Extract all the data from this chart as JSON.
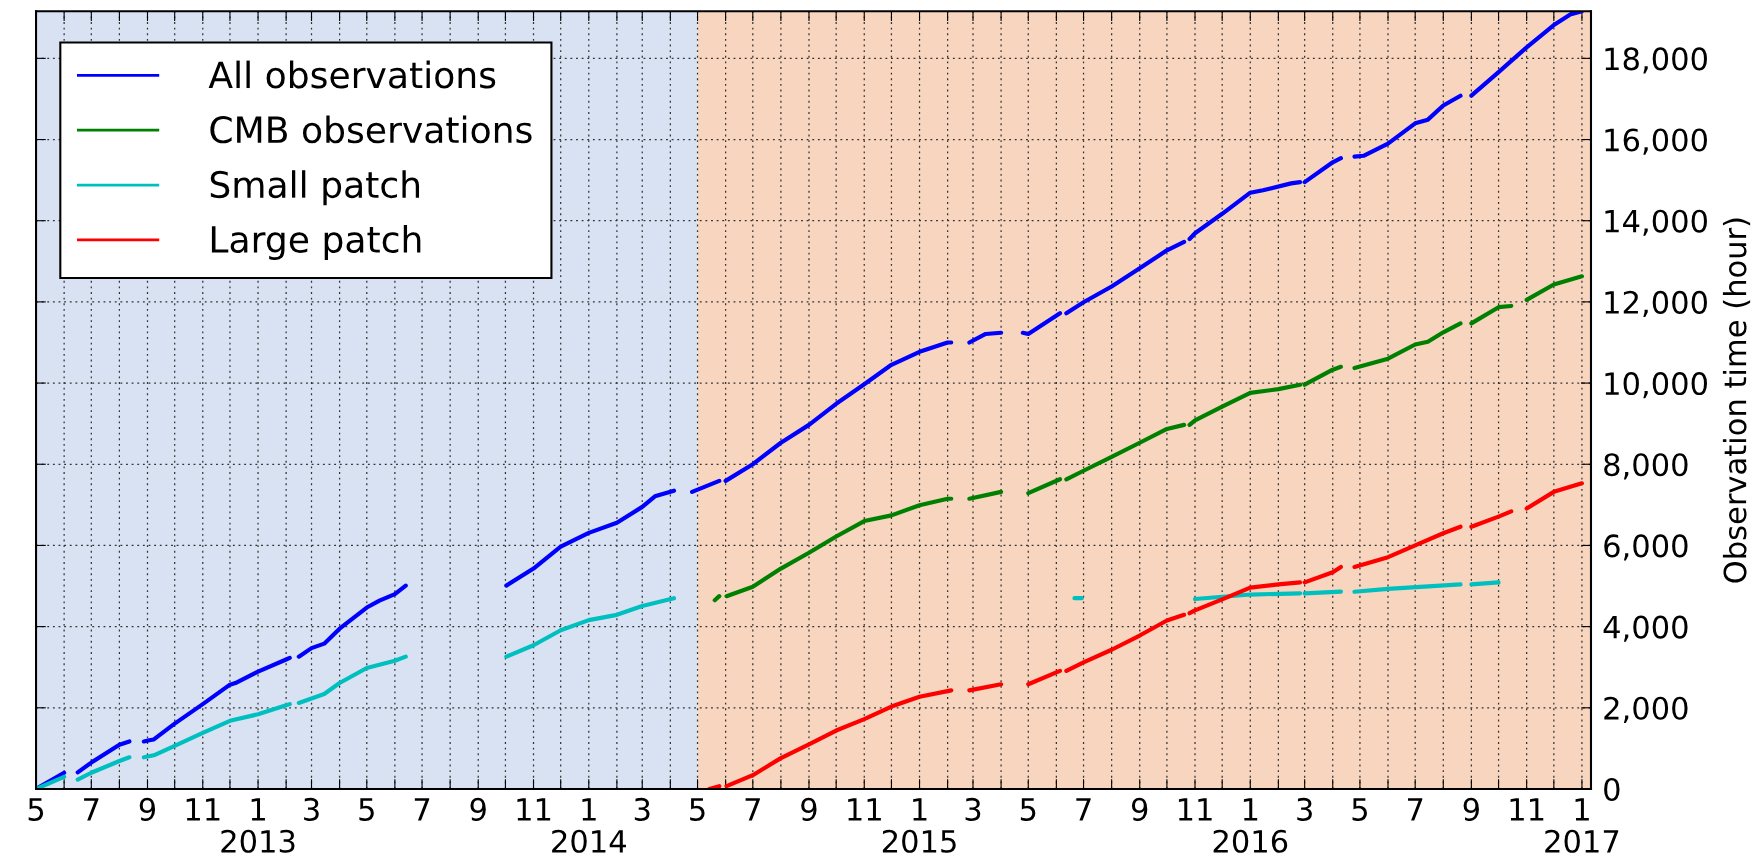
{
  "chart_data": {
    "type": "line",
    "ylabel": "Observation time (hour)",
    "xlim": [
      "2012-05-01",
      "2017-01-11"
    ],
    "ylim": [
      0,
      19160
    ],
    "yticks": [
      {
        "value": 0,
        "label": "0"
      },
      {
        "value": 2000,
        "label": "2,000"
      },
      {
        "value": 4000,
        "label": "4,000"
      },
      {
        "value": 6000,
        "label": "6,000"
      },
      {
        "value": 8000,
        "label": "8,000"
      },
      {
        "value": 10000,
        "label": "10,000"
      },
      {
        "value": 12000,
        "label": "12,000"
      },
      {
        "value": 14000,
        "label": "14,000"
      },
      {
        "value": 16000,
        "label": "16,000"
      },
      {
        "value": 18000,
        "label": "18,000"
      }
    ],
    "xticks": [
      {
        "value": "2012-05-01",
        "label": "5"
      },
      {
        "value": "2012-06-01",
        "label": null
      },
      {
        "value": "2012-07-01",
        "label": "7"
      },
      {
        "value": "2012-08-01",
        "label": null
      },
      {
        "value": "2012-09-01",
        "label": "9"
      },
      {
        "value": "2012-10-01",
        "label": null
      },
      {
        "value": "2012-11-01",
        "label": "11"
      },
      {
        "value": "2012-12-01",
        "label": null
      },
      {
        "value": "2013-01-01",
        "label": "1\n2013"
      },
      {
        "value": "2013-02-01",
        "label": null
      },
      {
        "value": "2013-03-01",
        "label": "3"
      },
      {
        "value": "2013-04-01",
        "label": null
      },
      {
        "value": "2013-05-01",
        "label": "5"
      },
      {
        "value": "2013-06-01",
        "label": null
      },
      {
        "value": "2013-07-01",
        "label": "7"
      },
      {
        "value": "2013-08-01",
        "label": null
      },
      {
        "value": "2013-09-01",
        "label": "9"
      },
      {
        "value": "2013-10-01",
        "label": null
      },
      {
        "value": "2013-11-01",
        "label": "11"
      },
      {
        "value": "2013-12-01",
        "label": null
      },
      {
        "value": "2014-01-01",
        "label": "1\n2014"
      },
      {
        "value": "2014-02-01",
        "label": null
      },
      {
        "value": "2014-03-01",
        "label": "3"
      },
      {
        "value": "2014-04-01",
        "label": null
      },
      {
        "value": "2014-05-01",
        "label": "5"
      },
      {
        "value": "2014-06-01",
        "label": null
      },
      {
        "value": "2014-07-01",
        "label": "7"
      },
      {
        "value": "2014-08-01",
        "label": null
      },
      {
        "value": "2014-09-01",
        "label": "9"
      },
      {
        "value": "2014-10-01",
        "label": null
      },
      {
        "value": "2014-11-01",
        "label": "11"
      },
      {
        "value": "2014-12-01",
        "label": null
      },
      {
        "value": "2015-01-01",
        "label": "1\n2015"
      },
      {
        "value": "2015-02-01",
        "label": null
      },
      {
        "value": "2015-03-01",
        "label": "3"
      },
      {
        "value": "2015-04-01",
        "label": null
      },
      {
        "value": "2015-05-01",
        "label": "5"
      },
      {
        "value": "2015-06-01",
        "label": null
      },
      {
        "value": "2015-07-01",
        "label": "7"
      },
      {
        "value": "2015-08-01",
        "label": null
      },
      {
        "value": "2015-09-01",
        "label": "9"
      },
      {
        "value": "2015-10-01",
        "label": null
      },
      {
        "value": "2015-11-01",
        "label": "11"
      },
      {
        "value": "2015-12-01",
        "label": null
      },
      {
        "value": "2016-01-01",
        "label": "1\n2016"
      },
      {
        "value": "2016-02-01",
        "label": null
      },
      {
        "value": "2016-03-01",
        "label": "3"
      },
      {
        "value": "2016-04-01",
        "label": null
      },
      {
        "value": "2016-05-01",
        "label": "5"
      },
      {
        "value": "2016-06-01",
        "label": null
      },
      {
        "value": "2016-07-01",
        "label": "7"
      },
      {
        "value": "2016-08-01",
        "label": null
      },
      {
        "value": "2016-09-01",
        "label": "9"
      },
      {
        "value": "2016-10-01",
        "label": null
      },
      {
        "value": "2016-11-01",
        "label": "11"
      },
      {
        "value": "2016-12-01",
        "label": null
      },
      {
        "value": "2017-01-01",
        "label": "1\n2017"
      }
    ],
    "grid": true,
    "legend": "top left",
    "marker": "none",
    "line_style": "solid",
    "bands": [
      {
        "axis": "x",
        "from": "2012-05-01",
        "to": "2014-05-01",
        "label": null,
        "color": "#d9e2f3"
      },
      {
        "axis": "x",
        "from": "2014-05-01",
        "to": "2017-01-11",
        "label": null,
        "color": "#f8d5bf"
      }
    ],
    "series": [
      {
        "name": "All observations",
        "color": "#0000ff",
        "x": [
          "2012-05-01",
          "2012-06-01",
          "2012-06-08",
          "2012-06-16",
          "2012-07-01",
          "2012-08-01",
          "2012-08-12",
          "2012-08-20",
          "2012-08-28",
          "2012-09-03",
          "2012-09-08",
          "2012-10-01",
          "2012-11-01",
          "2012-12-01",
          "2012-12-07",
          "2013-01-01",
          "2013-02-01",
          "2013-02-05",
          "2013-02-10",
          "2013-02-15",
          "2013-03-01",
          "2013-03-15",
          "2013-04-01",
          "2013-05-01",
          "2013-05-15",
          "2013-06-01",
          "2013-06-13",
          "2013-08-01",
          "2013-10-02",
          "2013-11-01",
          "2013-12-01",
          "2014-01-01",
          "2014-02-01",
          "2014-03-01",
          "2014-03-15",
          "2014-04-05",
          "2014-04-15",
          "2014-04-25",
          "2014-05-25",
          "2014-05-28",
          "2014-06-01",
          "2014-07-01",
          "2014-08-01",
          "2014-09-01",
          "2014-10-01",
          "2014-11-01",
          "2014-12-01",
          "2015-01-01",
          "2015-02-01",
          "2015-02-05",
          "2015-02-15",
          "2015-02-25",
          "2015-03-15",
          "2015-04-01",
          "2015-04-12",
          "2015-04-25",
          "2015-05-01",
          "2015-06-05",
          "2015-06-08",
          "2015-06-12",
          "2015-07-01",
          "2015-08-01",
          "2015-09-01",
          "2015-10-01",
          "2015-10-20",
          "2015-10-23",
          "2015-10-26",
          "2015-11-01",
          "2015-12-01",
          "2016-01-01",
          "2016-01-15",
          "2016-02-15",
          "2016-02-25",
          "2016-02-27",
          "2016-03-01",
          "2016-04-01",
          "2016-04-10",
          "2016-04-18",
          "2016-04-25",
          "2016-05-05",
          "2016-06-01",
          "2016-07-01",
          "2016-07-15",
          "2016-08-01",
          "2016-08-20",
          "2016-08-25",
          "2016-09-01",
          "2016-10-01",
          "2016-11-01",
          "2016-12-01",
          "2016-12-20",
          "2017-01-01"
        ],
        "values": [
          0,
          400,
          null,
          410,
          650,
          1090,
          1170,
          null,
          1170,
          1200,
          1220,
          1610,
          2090,
          2570,
          2610,
          2890,
          3190,
          3230,
          null,
          3260,
          3470,
          3580,
          3950,
          4470,
          4640,
          4800,
          5010,
          null,
          5010,
          5430,
          5970,
          6310,
          6560,
          6950,
          7210,
          7350,
          null,
          7320,
          7590,
          null,
          7590,
          8000,
          8530,
          8970,
          9490,
          9970,
          10450,
          10770,
          11000,
          11000,
          null,
          11000,
          11210,
          11240,
          null,
          11240,
          11210,
          11720,
          null,
          11720,
          11990,
          12380,
          12830,
          13270,
          13480,
          null,
          13550,
          13690,
          14170,
          14690,
          14750,
          14920,
          14950,
          null,
          14950,
          15440,
          15540,
          null,
          15580,
          15600,
          15900,
          16400,
          16490,
          16840,
          17080,
          null,
          17080,
          17660,
          18270,
          18820,
          19090,
          19160
        ]
      },
      {
        "name": "CMB observations",
        "color": "#008000",
        "x": [
          "2014-05-20",
          "2014-05-25",
          "2014-05-28",
          "2014-06-02",
          "2014-07-01",
          "2014-08-01",
          "2014-09-01",
          "2014-10-01",
          "2014-11-01",
          "2014-12-01",
          "2015-01-01",
          "2015-02-01",
          "2015-02-05",
          "2015-02-15",
          "2015-02-25",
          "2015-04-01",
          "2015-04-15",
          "2015-05-01",
          "2015-06-05",
          "2015-06-08",
          "2015-06-12",
          "2015-07-01",
          "2015-08-01",
          "2015-09-01",
          "2015-10-01",
          "2015-10-20",
          "2015-10-23",
          "2015-10-26",
          "2015-11-01",
          "2015-12-01",
          "2016-01-01",
          "2016-02-01",
          "2016-02-25",
          "2016-02-27",
          "2016-03-01",
          "2016-04-01",
          "2016-04-10",
          "2016-04-18",
          "2016-04-25",
          "2016-06-01",
          "2016-07-01",
          "2016-07-15",
          "2016-08-01",
          "2016-08-20",
          "2016-08-25",
          "2016-09-01",
          "2016-10-01",
          "2016-10-15",
          "2016-10-22",
          "2016-11-01",
          "2016-12-01",
          "2017-01-01"
        ],
        "values": [
          4650,
          4750,
          null,
          4750,
          4980,
          5430,
          5820,
          6220,
          6600,
          6740,
          6990,
          7150,
          7150,
          null,
          7150,
          7320,
          null,
          7290,
          7630,
          null,
          7630,
          7840,
          8180,
          8530,
          8870,
          8970,
          null,
          8970,
          9080,
          9420,
          9760,
          9850,
          9960,
          null,
          9960,
          10330,
          10400,
          null,
          10370,
          10600,
          10950,
          11020,
          11250,
          11470,
          null,
          11470,
          11870,
          11900,
          null,
          12050,
          12430,
          12630
        ]
      },
      {
        "name": "Small patch",
        "color": "#00bfbf",
        "x": [
          "2012-05-01",
          "2012-06-01",
          "2012-06-08",
          "2012-06-16",
          "2012-07-01",
          "2012-08-01",
          "2012-08-12",
          "2012-08-20",
          "2012-08-28",
          "2012-09-08",
          "2012-10-01",
          "2012-11-01",
          "2012-12-01",
          "2013-01-01",
          "2013-02-01",
          "2013-02-05",
          "2013-02-10",
          "2013-02-15",
          "2013-03-15",
          "2013-04-01",
          "2013-05-01",
          "2013-06-01",
          "2013-06-13",
          "2013-08-01",
          "2013-10-02",
          "2013-11-01",
          "2013-12-01",
          "2014-01-01",
          "2014-02-01",
          "2014-03-01",
          "2014-04-05",
          "2014-10-01",
          "2015-06-21",
          "2015-06-29",
          "2015-09-01",
          "2015-11-01",
          "2016-01-01",
          "2016-02-25",
          "2016-02-27",
          "2016-03-01",
          "2016-04-10",
          "2016-04-18",
          "2016-04-25",
          "2016-06-01",
          "2016-08-20",
          "2016-08-25",
          "2016-09-01",
          "2016-10-01"
        ],
        "values": [
          0,
          300,
          null,
          230,
          400,
          690,
          780,
          null,
          780,
          830,
          1060,
          1380,
          1680,
          1840,
          2060,
          2090,
          null,
          2120,
          2340,
          2610,
          2980,
          3160,
          3260,
          null,
          3260,
          3540,
          3910,
          4160,
          4290,
          4510,
          4700,
          null,
          4700,
          4700,
          null,
          4680,
          4790,
          4820,
          null,
          4820,
          4860,
          null,
          4860,
          4930,
          5040,
          null,
          5040,
          5090
        ]
      },
      {
        "name": "Large patch",
        "color": "#ff0000",
        "x": [
          "2014-05-14",
          "2014-05-25",
          "2014-05-28",
          "2014-06-02",
          "2014-07-01",
          "2014-08-01",
          "2014-09-01",
          "2014-10-01",
          "2014-11-01",
          "2014-12-01",
          "2015-01-01",
          "2015-02-05",
          "2015-02-15",
          "2015-02-25",
          "2015-04-01",
          "2015-04-15",
          "2015-05-01",
          "2015-06-05",
          "2015-06-08",
          "2015-06-12",
          "2015-07-01",
          "2015-08-01",
          "2015-09-01",
          "2015-10-01",
          "2015-10-20",
          "2015-10-23",
          "2015-10-26",
          "2015-11-01",
          "2015-12-01",
          "2016-01-01",
          "2016-02-01",
          "2016-02-25",
          "2016-02-27",
          "2016-03-01",
          "2016-04-01",
          "2016-04-10",
          "2016-04-18",
          "2016-04-25",
          "2016-06-01",
          "2016-07-01",
          "2016-08-01",
          "2016-08-20",
          "2016-08-25",
          "2016-09-01",
          "2016-10-01",
          "2016-10-15",
          "2016-10-22",
          "2016-11-01",
          "2016-12-01",
          "2017-01-01"
        ],
        "values": [
          0,
          70,
          null,
          70,
          340,
          760,
          1100,
          1440,
          1720,
          2030,
          2270,
          2430,
          null,
          2430,
          2580,
          null,
          2580,
          2910,
          null,
          2910,
          3120,
          3430,
          3780,
          4150,
          4290,
          null,
          4330,
          4400,
          4670,
          4960,
          5040,
          5090,
          null,
          5090,
          5340,
          5470,
          null,
          5470,
          5710,
          6000,
          6300,
          6460,
          null,
          6460,
          6710,
          6840,
          null,
          6910,
          7320,
          7530
        ]
      }
    ]
  }
}
